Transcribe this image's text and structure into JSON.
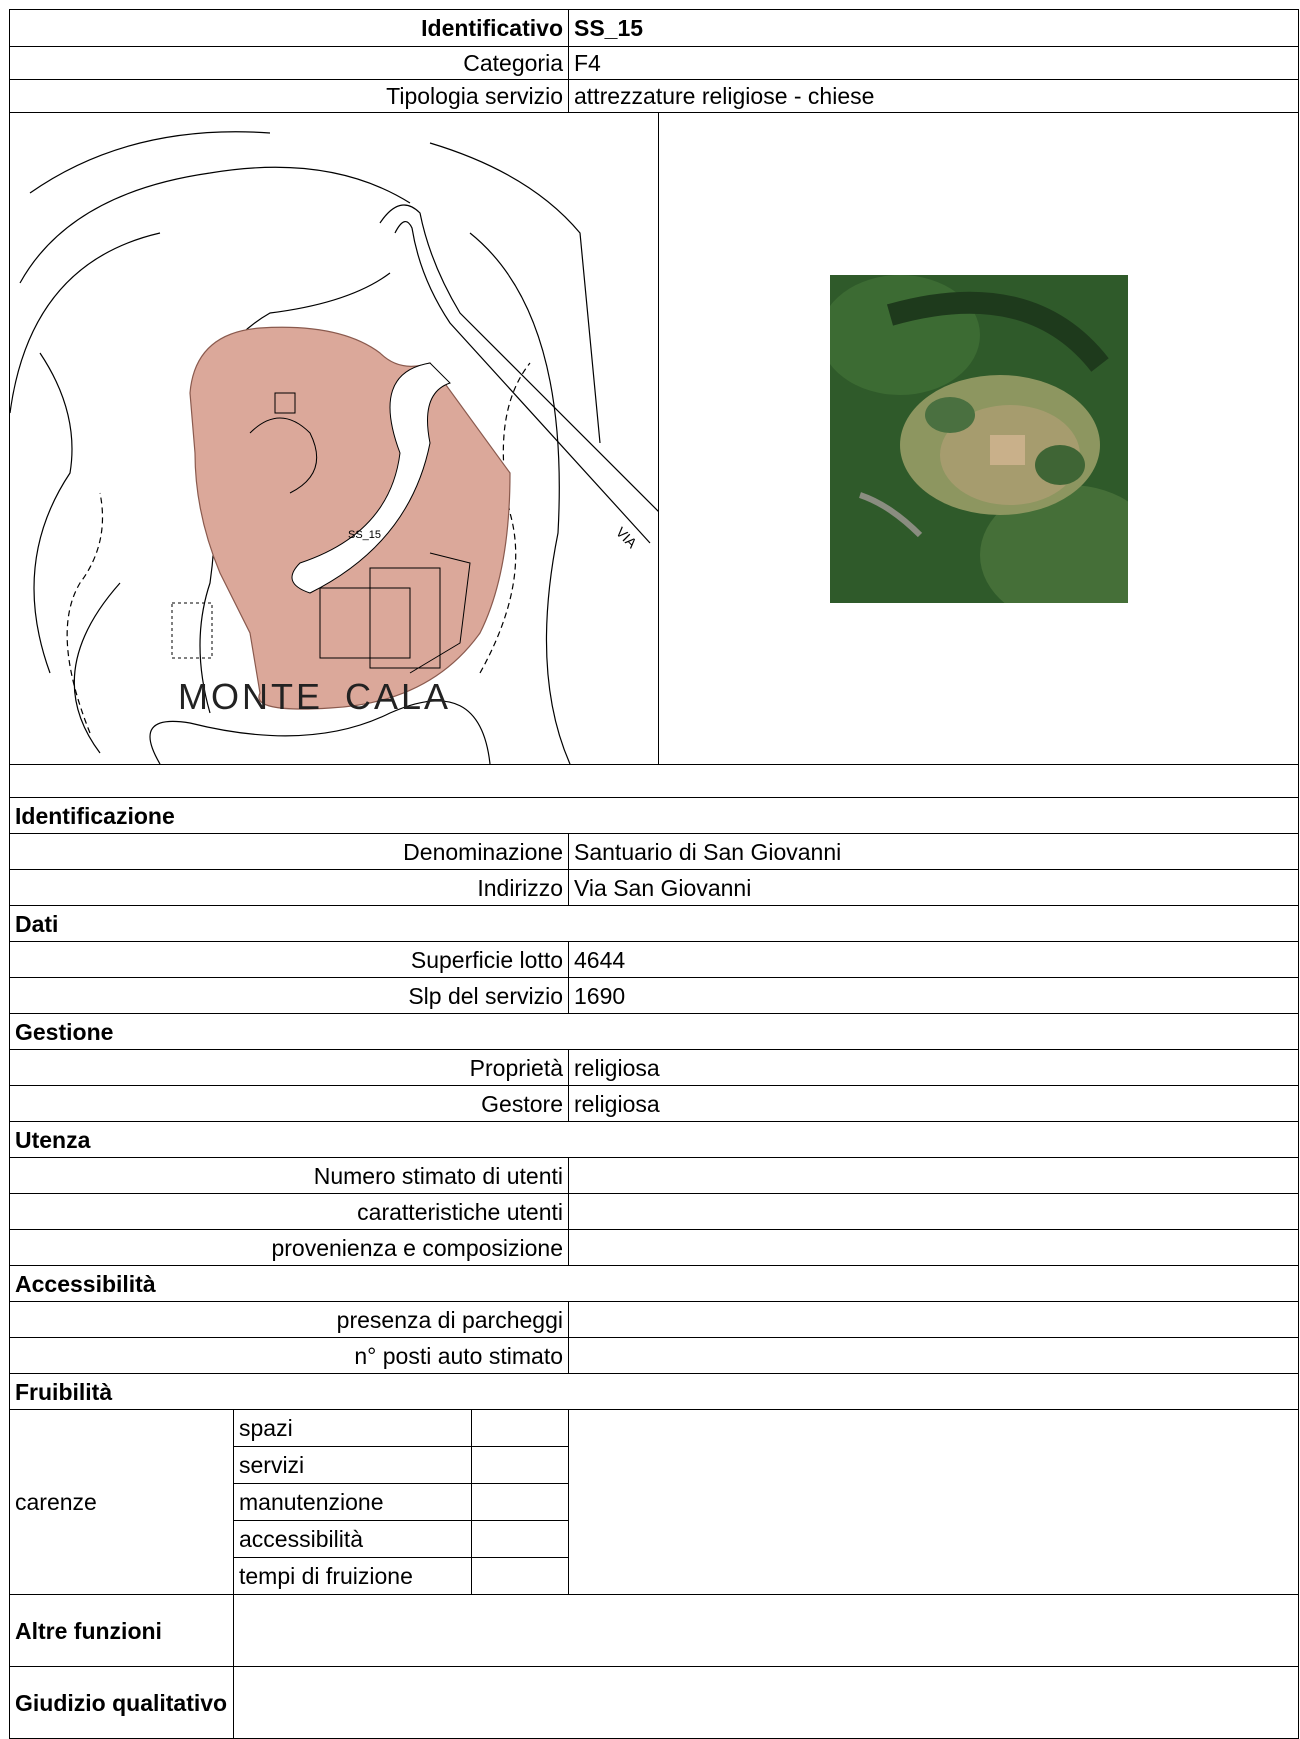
{
  "header": [
    {
      "label": "Identificativo",
      "value": "SS_15",
      "bold": true
    },
    {
      "label": "Categoria",
      "value": "F4"
    },
    {
      "label": "Tipologia servizio",
      "value": "attrezzature religiose - chiese"
    }
  ],
  "map": {
    "lot_label": "SS_15",
    "place_labels": [
      "MONTE",
      "CALA"
    ],
    "road_label": "VIA"
  },
  "sections": [
    {
      "title": "Identificazione",
      "rows": [
        {
          "label": "Denominazione",
          "value": "Santuario di San Giovanni"
        },
        {
          "label": "Indirizzo",
          "value": "Via San Giovanni"
        }
      ]
    },
    {
      "title": "Dati",
      "rows": [
        {
          "label": "Superficie lotto",
          "value": 4644
        },
        {
          "label": "Slp del servizio",
          "value": 1690
        }
      ]
    },
    {
      "title": "Gestione",
      "rows": [
        {
          "label": "Proprietà",
          "value": "religiosa"
        },
        {
          "label": "Gestore",
          "value": "religiosa"
        }
      ]
    },
    {
      "title": "Utenza",
      "rows": [
        {
          "label": "Numero stimato di utenti"
        },
        {
          "label": "caratteristiche utenti"
        },
        {
          "label": "provenienza e composizione"
        }
      ]
    },
    {
      "title": "Accessibilità",
      "rows": [
        {
          "label": "presenza di parcheggi"
        },
        {
          "label": "n° posti auto stimato"
        }
      ]
    }
  ],
  "fruibilita": {
    "title": "Fruibilità",
    "group": "carenze",
    "items": [
      "spazi",
      "servizi",
      "manutenzione",
      "accessibilità",
      "tempi di fruizione"
    ]
  },
  "footer": [
    "Altre funzioni",
    "Giudizio qualitativo"
  ]
}
